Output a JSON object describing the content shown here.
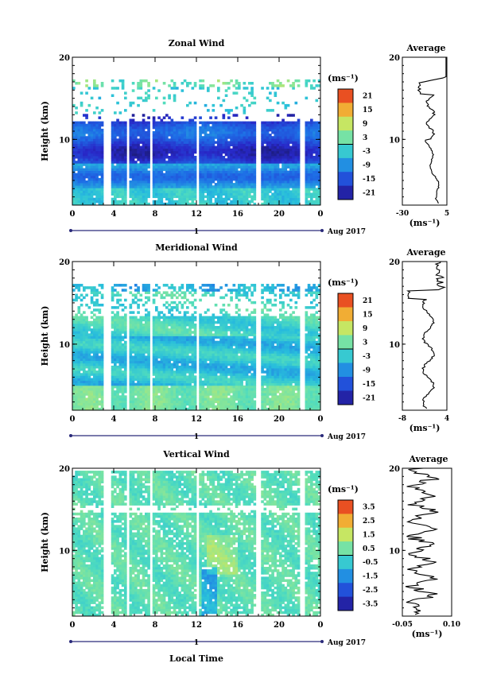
{
  "chart_data": [
    {
      "type": "heatmap",
      "title": "Zonal Wind",
      "ylabel": "Height (km)",
      "xlabel": "",
      "x_ticks": [
        "0",
        "4",
        "8",
        "12",
        "16",
        "20",
        "0"
      ],
      "y_ticks": [
        "20",
        "10"
      ],
      "date_label": "1",
      "month_label": "Aug 2017",
      "xlim": [
        0,
        24
      ],
      "ylim": [
        2,
        20
      ],
      "colorbar": {
        "unit": "(ms⁻¹)",
        "ticks": [
          "21",
          "15",
          "9",
          "3",
          "-3",
          "-9",
          "-15",
          "-21"
        ],
        "range": [
          -24,
          24
        ]
      },
      "profile": {
        "title": "Average",
        "x_ticks": [
          "-30",
          "5"
        ],
        "unit": "(ms⁻¹)",
        "xlim": [
          -30,
          5
        ],
        "y_ticks": [
          "20",
          "10"
        ]
      }
    },
    {
      "type": "heatmap",
      "title": "Meridional Wind",
      "ylabel": "Height (km)",
      "xlabel": "",
      "x_ticks": [
        "0",
        "4",
        "8",
        "12",
        "16",
        "20",
        "0"
      ],
      "y_ticks": [
        "20",
        "10"
      ],
      "date_label": "1",
      "month_label": "Aug 2017",
      "xlim": [
        0,
        24
      ],
      "ylim": [
        2,
        20
      ],
      "colorbar": {
        "unit": "(ms⁻¹)",
        "ticks": [
          "21",
          "15",
          "9",
          "3",
          "-3",
          "-9",
          "-15",
          "-21"
        ],
        "range": [
          -24,
          24
        ]
      },
      "profile": {
        "title": "Average",
        "x_ticks": [
          "-8",
          "4"
        ],
        "unit": "(ms⁻¹)",
        "xlim": [
          -8,
          4
        ],
        "y_ticks": [
          "20",
          "10"
        ]
      }
    },
    {
      "type": "heatmap",
      "title": "Vertical Wind",
      "ylabel": "Height (km)",
      "xlabel": "Local Time",
      "x_ticks": [
        "0",
        "4",
        "8",
        "12",
        "16",
        "20",
        "0"
      ],
      "y_ticks": [
        "20",
        "10"
      ],
      "date_label": "1",
      "month_label": "Aug 2017",
      "xlim": [
        0,
        24
      ],
      "ylim": [
        2,
        20
      ],
      "colorbar": {
        "unit": "(ms⁻¹)",
        "ticks": [
          "3.5",
          "2.5",
          "1.5",
          "0.5",
          "-0.5",
          "-1.5",
          "-2.5",
          "-3.5"
        ],
        "range": [
          -4,
          4
        ]
      },
      "profile": {
        "title": "Average",
        "x_ticks": [
          "-0.05",
          "0.10"
        ],
        "unit": "(ms⁻¹)",
        "xlim": [
          -0.1,
          0.1
        ],
        "y_ticks": [
          "20",
          "10"
        ]
      }
    }
  ]
}
